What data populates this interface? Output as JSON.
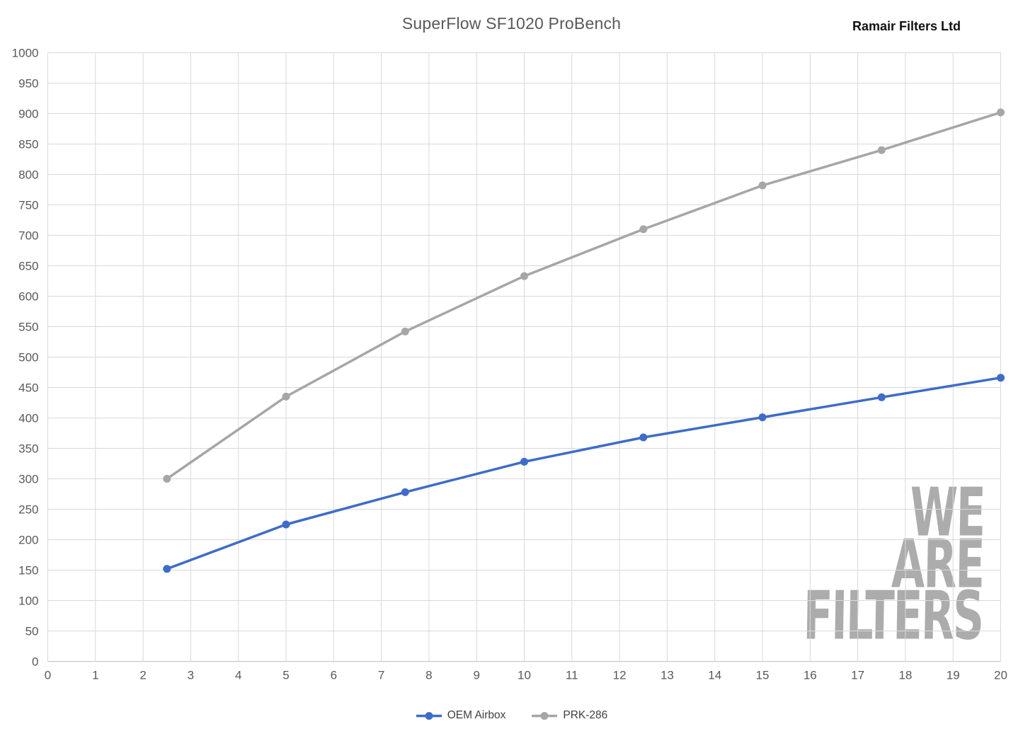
{
  "header": {
    "title": "SuperFlow SF1020 ProBench",
    "brand": "Ramair Filters Ltd"
  },
  "watermark": {
    "lines": [
      "WE",
      "ARE",
      "FILTERS"
    ],
    "color": "#acacac"
  },
  "chart_data": {
    "type": "line",
    "title": "SuperFlow SF1020 ProBench",
    "xlabel": "",
    "ylabel": "",
    "x": [
      2.5,
      5,
      7.5,
      10,
      12.5,
      15,
      17.5,
      20
    ],
    "series": [
      {
        "name": "OEM Airbox",
        "color": "#3e6cc8",
        "values": [
          152,
          225,
          278,
          328,
          368,
          401,
          434,
          466
        ]
      },
      {
        "name": "PRK-286",
        "color": "#a6a6a6",
        "values": [
          300,
          435,
          542,
          633,
          710,
          782,
          840,
          902
        ]
      }
    ],
    "xlim": [
      0,
      20
    ],
    "ylim": [
      0,
      1000
    ],
    "x_tick_step": 1,
    "y_tick_step": 50,
    "grid": true,
    "legend_position": "bottom",
    "grid_color": "#d9d9d9",
    "axis_color": "#bfbfbf",
    "tick_label_color": "#595959"
  }
}
